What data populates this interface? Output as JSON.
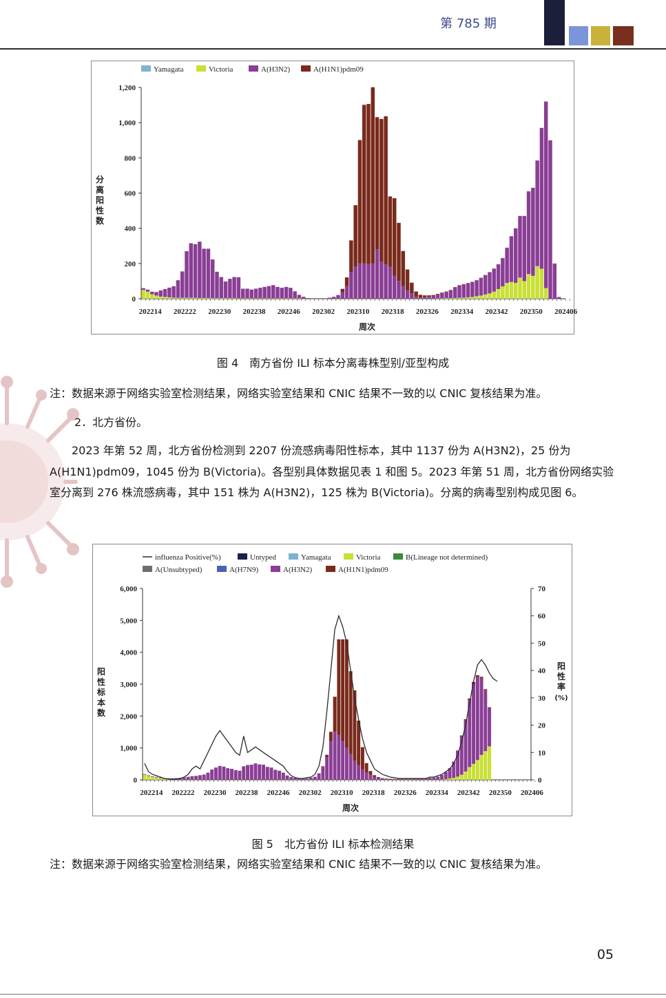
{
  "header": {
    "issue": "第 785 期",
    "colors": [
      "#1c1f3a",
      "#7b95d8",
      "#c8b23a",
      "#7a2e1e"
    ]
  },
  "figure4": {
    "caption": "图 4　南方省份 ILI 标本分离毒株型别/亚型构成",
    "note": "注：数据来源于网络实验室检测结果，网络实验室结果和 CNIC 结果不一致的以 CNIC 复核结果为准。"
  },
  "section": {
    "subheading": "2．北方省份。",
    "paragraph": "2023 年第 52 周，北方省份检测到 2207 份流感病毒阳性标本，其中 1137 份为 A(H3N2)，25 份为 A(H1N1)pdm09，1045 份为 B(Victoria)。各型别具体数据见表 1 和图 5。2023 年第 51 周，北方省份网络实验室分离到 276 株流感病毒，其中 151 株为 A(H3N2)，125 株为 B(Victoria)。分离的病毒型别构成见图 6。"
  },
  "figure5": {
    "caption": "图 5　北方省份 ILI 标本检测结果",
    "note": "注：数据来源于网络实验室检测结果，网络实验室结果和 CNIC 结果不一致的以 CNIC 复核结果为准。"
  },
  "page_number": "05",
  "chart_data": [
    {
      "type": "bar",
      "stacked": true,
      "xlabel": "周次",
      "ylabel": "分离阳性数",
      "ylim": [
        0,
        1200
      ],
      "yticks": [
        "0",
        "200",
        "400",
        "600",
        "800",
        "1,000",
        "1,200"
      ],
      "xtick_labels": [
        "202214",
        "202222",
        "202230",
        "202238",
        "202246",
        "202302",
        "202310",
        "202318",
        "202326",
        "202334",
        "202342",
        "202350",
        "202406"
      ],
      "weeks": 98,
      "legend_position": "top",
      "series": [
        {
          "name": "Yamagata",
          "color": "#7fb2d0",
          "values": [
            0,
            0,
            0,
            0,
            0,
            0,
            0,
            0,
            0,
            0,
            0,
            0,
            0,
            0,
            0,
            0,
            0,
            0,
            0,
            0,
            0,
            0,
            0,
            0,
            0,
            0,
            0,
            0,
            0,
            0,
            0,
            0,
            0,
            0,
            0,
            0,
            0,
            0,
            0,
            0,
            0,
            0,
            0,
            0,
            0,
            0,
            0,
            0,
            0,
            0,
            0,
            0,
            0,
            0,
            0,
            0,
            0,
            0,
            0,
            0,
            0,
            0,
            0,
            0,
            0,
            0,
            0,
            0,
            0,
            0,
            0,
            0,
            0,
            0,
            0,
            0,
            0,
            0,
            0,
            0,
            0,
            0,
            0,
            0,
            0,
            0,
            0,
            0,
            0,
            0,
            0,
            0,
            0,
            0,
            0,
            0,
            0,
            0
          ]
        },
        {
          "name": "Victoria",
          "color": "#c9df35",
          "values": [
            50,
            40,
            25,
            18,
            12,
            10,
            8,
            6,
            5,
            5,
            5,
            5,
            5,
            4,
            4,
            4,
            3,
            3,
            3,
            3,
            3,
            3,
            2,
            2,
            2,
            2,
            2,
            2,
            2,
            2,
            2,
            2,
            2,
            2,
            2,
            2,
            2,
            1,
            1,
            1,
            1,
            1,
            1,
            1,
            1,
            1,
            1,
            1,
            1,
            1,
            1,
            1,
            1,
            1,
            1,
            1,
            1,
            1,
            1,
            1,
            1,
            1,
            1,
            1,
            1,
            1,
            1,
            1,
            2,
            2,
            3,
            3,
            4,
            5,
            6,
            8,
            10,
            14,
            18,
            24,
            30,
            40,
            55,
            70,
            90,
            95,
            90,
            120,
            100,
            140,
            130,
            185,
            170,
            60,
            0,
            0,
            0,
            0
          ]
        },
        {
          "name": "A(H3N2)",
          "color": "#8a3e95",
          "values": [
            10,
            12,
            15,
            20,
            35,
            45,
            55,
            65,
            100,
            150,
            265,
            310,
            305,
            320,
            280,
            280,
            220,
            150,
            120,
            95,
            110,
            120,
            120,
            55,
            55,
            50,
            55,
            60,
            65,
            70,
            75,
            65,
            60,
            65,
            60,
            40,
            20,
            10,
            3,
            2,
            2,
            2,
            2,
            5,
            10,
            20,
            35,
            70,
            150,
            180,
            200,
            200,
            195,
            200,
            280,
            210,
            195,
            180,
            130,
            100,
            70,
            45,
            30,
            10,
            6,
            8,
            10,
            15,
            20,
            30,
            35,
            45,
            60,
            70,
            75,
            80,
            85,
            90,
            100,
            110,
            120,
            130,
            140,
            160,
            200,
            260,
            310,
            350,
            370,
            470,
            500,
            600,
            800,
            1060,
            900,
            200,
            10,
            0
          ]
        },
        {
          "name": "A(H1N1)pdm09",
          "color": "#7a2a1c",
          "values": [
            0,
            0,
            0,
            0,
            0,
            0,
            0,
            0,
            0,
            0,
            0,
            0,
            0,
            0,
            0,
            0,
            0,
            0,
            0,
            0,
            0,
            0,
            0,
            0,
            0,
            0,
            0,
            0,
            0,
            0,
            0,
            0,
            0,
            0,
            0,
            0,
            0,
            0,
            0,
            0,
            0,
            0,
            0,
            0,
            0,
            0,
            20,
            50,
            180,
            350,
            700,
            900,
            910,
            1000,
            750,
            810,
            840,
            400,
            440,
            330,
            200,
            120,
            60,
            30,
            15,
            10,
            8,
            5,
            5,
            3,
            3,
            2,
            2,
            2,
            2,
            1,
            1,
            1,
            1,
            1,
            1,
            1,
            1,
            1,
            0,
            0,
            0,
            0,
            0,
            0,
            0,
            0,
            0,
            0,
            0,
            0,
            0,
            0
          ]
        }
      ]
    },
    {
      "type": "bar",
      "stacked": true,
      "xlabel": "周次",
      "ylabel": "阳性标本数",
      "y2label": "阳性率 (%)",
      "ylim": [
        0,
        6000
      ],
      "y2lim": [
        0,
        70
      ],
      "yticks": [
        "0",
        "1,000",
        "2,000",
        "3,000",
        "4,000",
        "5,000",
        "6,000"
      ],
      "y2ticks": [
        "0",
        "10",
        "20",
        "30",
        "40",
        "50",
        "60",
        "70"
      ],
      "xtick_labels": [
        "202214",
        "202222",
        "202230",
        "202238",
        "202246",
        "202302",
        "202310",
        "202318",
        "202326",
        "202334",
        "202342",
        "202350",
        "202406"
      ],
      "weeks": 98,
      "legend_position": "top",
      "legend_extra": [
        "influenza Positive(%)",
        "Untyped",
        "B(Lineage not determined)",
        "A(Unsubtyped)",
        "A(H7N9)"
      ],
      "extra_colors": {
        "Untyped": "#1c1f4a",
        "B(Lineage not determined)": "#3d8a3a",
        "A(Unsubtyped)": "#6e6e6e",
        "A(H7N9)": "#4a63b0"
      },
      "series": [
        {
          "name": "Victoria",
          "color": "#c9df35",
          "values": [
            160,
            120,
            90,
            70,
            50,
            30,
            20,
            10,
            5,
            5,
            5,
            5,
            5,
            5,
            5,
            5,
            5,
            5,
            5,
            5,
            5,
            5,
            5,
            5,
            5,
            5,
            5,
            5,
            5,
            5,
            5,
            5,
            5,
            5,
            5,
            5,
            5,
            5,
            5,
            5,
            5,
            5,
            5,
            5,
            5,
            5,
            5,
            5,
            5,
            5,
            5,
            5,
            5,
            5,
            5,
            5,
            5,
            5,
            5,
            5,
            5,
            5,
            5,
            5,
            5,
            5,
            5,
            5,
            5,
            5,
            5,
            5,
            5,
            5,
            5,
            10,
            20,
            40,
            60,
            100,
            160,
            260,
            400,
            500,
            620,
            780,
            900,
            1050,
            0,
            0,
            0,
            0,
            0,
            0,
            0,
            0,
            0,
            0
          ]
        },
        {
          "name": "A(H3N2)",
          "color": "#8a3e95",
          "values": [
            20,
            20,
            20,
            20,
            20,
            20,
            30,
            40,
            50,
            60,
            70,
            90,
            110,
            120,
            140,
            160,
            220,
            320,
            380,
            430,
            410,
            360,
            340,
            300,
            280,
            420,
            460,
            470,
            510,
            480,
            470,
            400,
            380,
            310,
            280,
            220,
            130,
            80,
            60,
            50,
            40,
            40,
            60,
            90,
            200,
            400,
            700,
            1200,
            1500,
            1400,
            1200,
            1000,
            800,
            600,
            450,
            320,
            220,
            150,
            90,
            60,
            40,
            30,
            25,
            20,
            20,
            20,
            20,
            20,
            25,
            30,
            35,
            40,
            50,
            60,
            90,
            140,
            220,
            320,
            500,
            800,
            1200,
            1600,
            2100,
            2500,
            2600,
            2400,
            1900,
            1200,
            0,
            0,
            0,
            0,
            0,
            0,
            0,
            0,
            0,
            0
          ]
        },
        {
          "name": "A(H1N1)pdm09",
          "color": "#7a2a1c",
          "values": [
            0,
            0,
            0,
            0,
            0,
            0,
            0,
            0,
            0,
            0,
            0,
            0,
            0,
            0,
            0,
            0,
            0,
            0,
            0,
            0,
            0,
            0,
            0,
            0,
            0,
            0,
            0,
            0,
            0,
            0,
            0,
            0,
            0,
            0,
            0,
            0,
            0,
            0,
            0,
            0,
            0,
            0,
            0,
            0,
            0,
            20,
            80,
            300,
            1100,
            3000,
            3200,
            3400,
            2600,
            2200,
            1400,
            700,
            300,
            120,
            50,
            20,
            10,
            5,
            5,
            5,
            5,
            5,
            5,
            5,
            5,
            5,
            5,
            5,
            5,
            5,
            5,
            5,
            5,
            5,
            10,
            20,
            30,
            40,
            50,
            70,
            60,
            50,
            40,
            25,
            0,
            0,
            0,
            0,
            0,
            0,
            0,
            0,
            0,
            0
          ]
        }
      ],
      "line": {
        "name": "influenza Positive(%)",
        "color": "#2a2a2a",
        "values": [
          6,
          3,
          2,
          1.5,
          1,
          0.5,
          0.3,
          0.2,
          0.2,
          0.5,
          1,
          2,
          4,
          5,
          4,
          7,
          10,
          13,
          16,
          18,
          16,
          14,
          12,
          10,
          9,
          16,
          10,
          11,
          12,
          11,
          10,
          9,
          8,
          7,
          6,
          5,
          3,
          1.5,
          0.8,
          0.5,
          0.5,
          0.8,
          1,
          2,
          5,
          12,
          25,
          40,
          55,
          60,
          56,
          50,
          40,
          30,
          22,
          15,
          10,
          7,
          4,
          3,
          2,
          1.5,
          1,
          0.8,
          0.5,
          0.5,
          0.5,
          0.5,
          0.5,
          0.5,
          0.5,
          0.5,
          1,
          1,
          1.5,
          2,
          3,
          4,
          6,
          9,
          14,
          20,
          28,
          36,
          42,
          44,
          42,
          39,
          37,
          36,
          null,
          null,
          null,
          null,
          null,
          null,
          null,
          null,
          null,
          null
        ]
      }
    }
  ]
}
